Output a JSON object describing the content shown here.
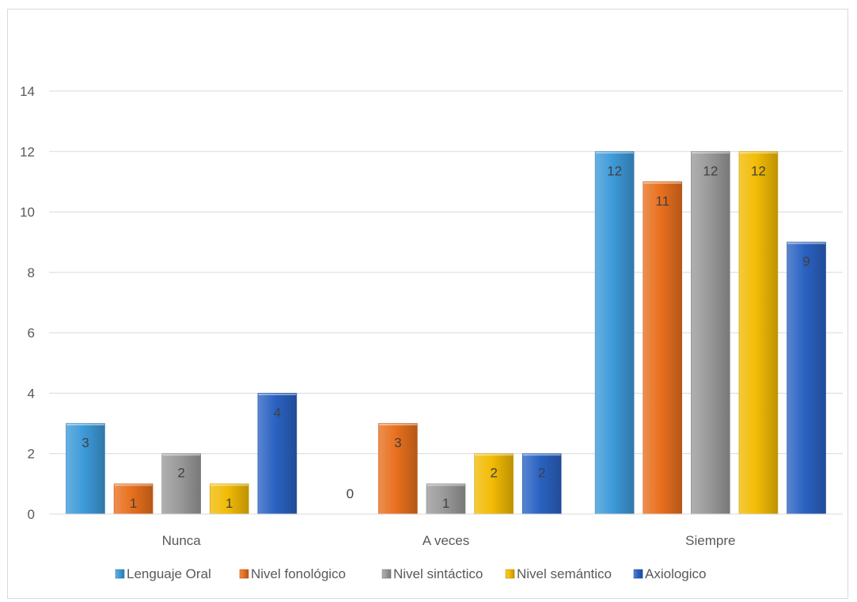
{
  "chart_data": {
    "type": "bar",
    "categories": [
      "Nunca",
      "A veces",
      "Siempre"
    ],
    "series": [
      {
        "name": "Lenguaje Oral",
        "values": [
          3,
          0,
          12
        ],
        "color": "#3d9ad9"
      },
      {
        "name": "Nivel fonológico",
        "values": [
          1,
          3,
          11
        ],
        "color": "#e8701e"
      },
      {
        "name": "Nivel sintáctico",
        "values": [
          2,
          1,
          12
        ],
        "color": "#9a9a9a"
      },
      {
        "name": "Nivel semántico",
        "values": [
          1,
          2,
          12
        ],
        "color": "#f2bb05"
      },
      {
        "name": "Axiologico",
        "values": [
          4,
          2,
          9
        ],
        "color": "#2a62c2"
      }
    ],
    "ylim": [
      0,
      14
    ],
    "yticks": [
      0,
      2,
      4,
      6,
      8,
      10,
      12,
      14
    ],
    "grid": true,
    "legend": "bottom",
    "data_labels": true
  }
}
